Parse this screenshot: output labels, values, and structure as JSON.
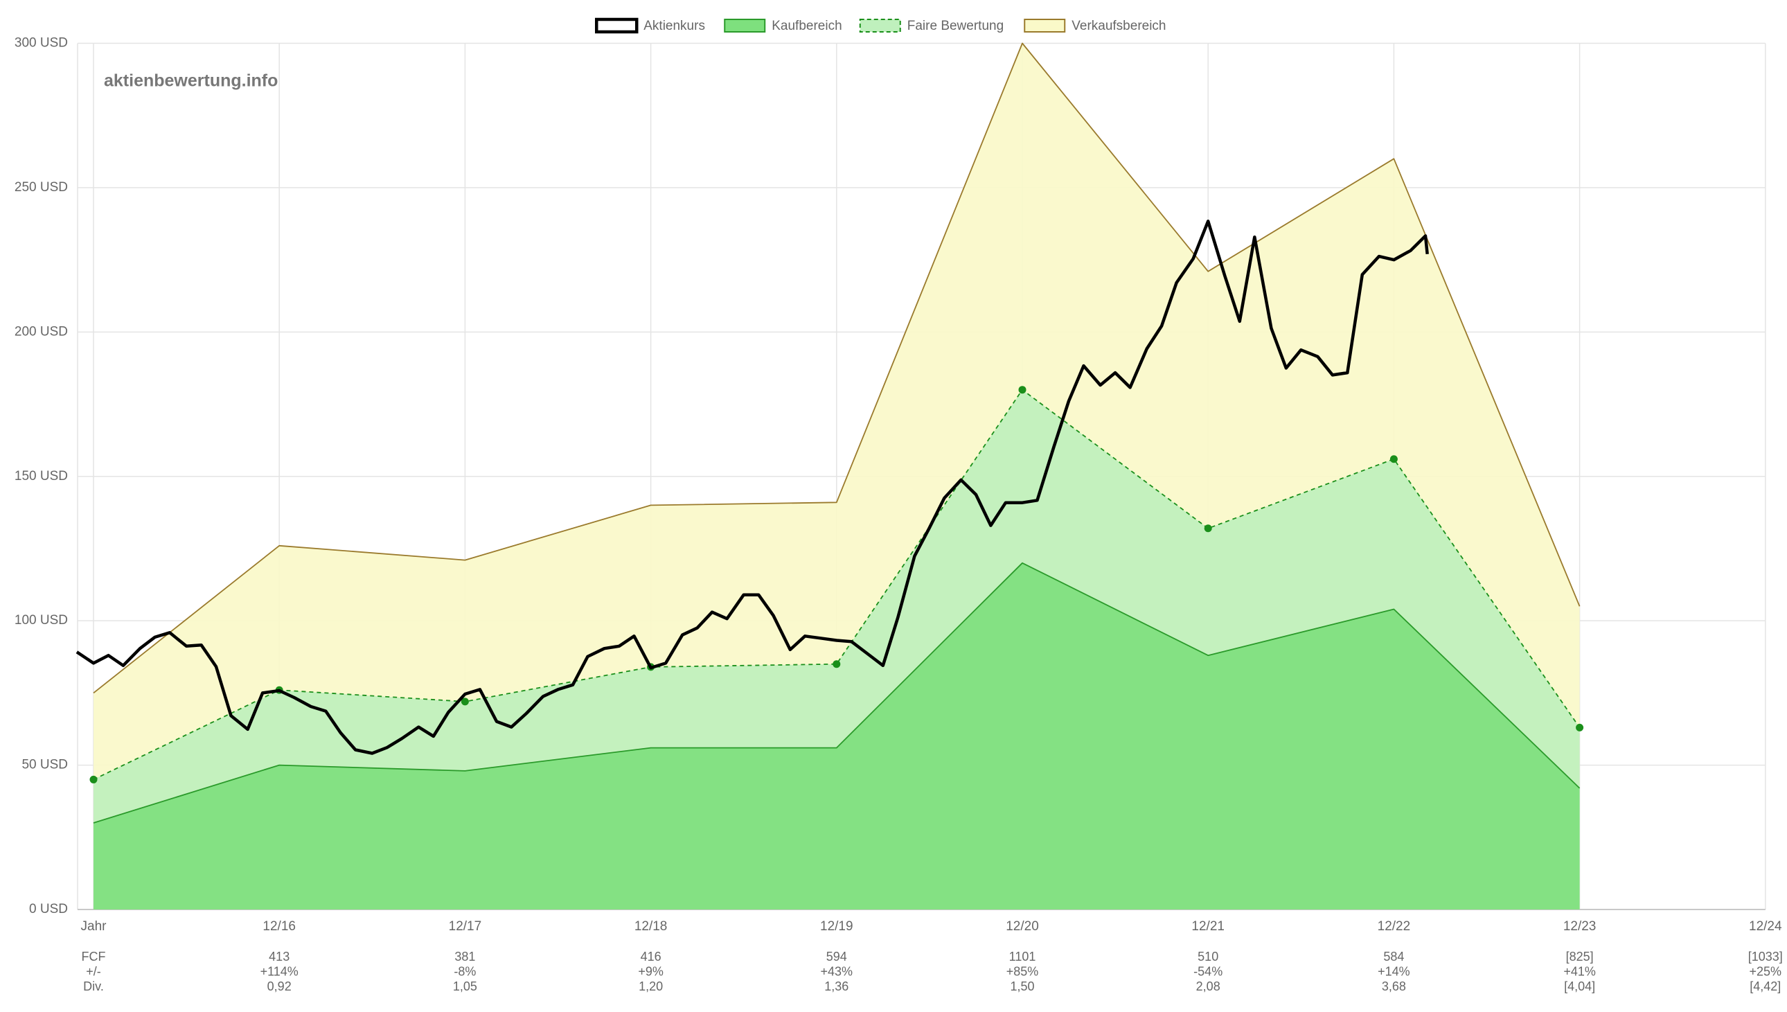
{
  "chart_data": {
    "type": "valuation",
    "watermark": "aktienbewertung.info",
    "categories": [
      "Jahr",
      "12/16",
      "12/17",
      "12/18",
      "12/19",
      "12/20",
      "12/21",
      "12/22",
      "12/23",
      "12/24"
    ],
    "ylim": [
      0,
      300
    ],
    "yticks": [
      {
        "value": 0,
        "label": "0 USD"
      },
      {
        "value": 50,
        "label": "50 USD"
      },
      {
        "value": 100,
        "label": "100 USD"
      },
      {
        "value": 150,
        "label": "150 USD"
      },
      {
        "value": 200,
        "label": "200 USD"
      },
      {
        "value": 250,
        "label": "250 USD"
      },
      {
        "value": 300,
        "label": "300 USD"
      }
    ],
    "grid": true,
    "legend": "top",
    "series": [
      {
        "name": "Verkaufsbereich",
        "color": "#9a7a2c",
        "fill": "#faf9c9",
        "values": [
          75,
          126,
          121,
          140,
          141,
          300,
          221,
          260,
          105,
          null
        ]
      },
      {
        "name": "Faire Bewertung",
        "color": "#1a8f1a",
        "fill": "#bff0bd",
        "dashed": true,
        "markers": true,
        "values": [
          45,
          76,
          72,
          84,
          85,
          180,
          132,
          156,
          63,
          null
        ]
      },
      {
        "name": "Kaufbereich",
        "color": "#2a9a2a",
        "fill": "#7ee07e",
        "values": [
          30,
          50,
          48,
          56,
          56,
          120,
          88,
          104,
          42,
          null
        ]
      },
      {
        "name": "Aktienkurs",
        "color": "#000000",
        "x": [
          -0.09,
          0,
          0.08,
          0.16,
          0.25,
          0.33,
          0.41,
          0.5,
          0.58,
          0.66,
          0.74,
          0.83,
          0.91,
          1,
          1.08,
          1.17,
          1.25,
          1.33,
          1.41,
          1.5,
          1.58,
          1.66,
          1.75,
          1.83,
          1.91,
          2,
          2.08,
          2.17,
          2.25,
          2.33,
          2.42,
          2.5,
          2.58,
          2.66,
          2.75,
          2.83,
          2.91,
          3,
          3.08,
          3.17,
          3.25,
          3.33,
          3.41,
          3.5,
          3.58,
          3.66,
          3.75,
          3.83,
          3.91,
          4,
          4.08,
          4.17,
          4.25,
          4.33,
          4.42,
          4.5,
          4.58,
          4.67,
          4.75,
          4.83,
          4.91,
          5,
          5.08,
          5.17,
          5.25,
          5.33,
          5.42,
          5.5,
          5.58,
          5.67,
          5.75,
          5.83,
          5.92,
          6,
          6.09,
          6.17,
          6.25,
          6.34,
          6.42,
          6.5,
          6.59,
          6.67,
          6.75,
          6.83,
          6.92,
          7,
          7.09,
          7.17,
          7.18
        ],
        "values": [
          89.2,
          85.3,
          88,
          84.5,
          90.4,
          94.3,
          95.9,
          91.2,
          91.6,
          84.1,
          67.1,
          62.4,
          75,
          75.8,
          73.4,
          70.3,
          68.7,
          61.2,
          55.3,
          54.1,
          56.1,
          59.2,
          63.2,
          60,
          68.3,
          74.6,
          76.2,
          65.1,
          63.2,
          67.9,
          73.8,
          76.2,
          77.8,
          87.6,
          90.4,
          91.2,
          94.7,
          83.7,
          85.3,
          95.1,
          97.5,
          103,
          100.7,
          109,
          109,
          101.8,
          90,
          94.7,
          94,
          93.2,
          92.8,
          88.4,
          84.5,
          101.1,
          122.4,
          132.2,
          142.5,
          148.8,
          143.7,
          133,
          140.9,
          140.9,
          141.7,
          160.3,
          176.1,
          188.3,
          181.6,
          185.9,
          180.8,
          194.2,
          202.1,
          217.1,
          225.4,
          238.4,
          219.5,
          203.7,
          232.9,
          201.3,
          187.5,
          193.8,
          191.5,
          185.1,
          185.9,
          219.9,
          226.2,
          225,
          228.2,
          233.3,
          227
        ]
      }
    ],
    "table": [
      [
        "FCF",
        "413",
        "381",
        "416",
        "594",
        "1101",
        "510",
        "584",
        "[825]",
        "[1033]"
      ],
      [
        "+/-",
        "+114%",
        "-8%",
        "+9%",
        "+43%",
        "+85%",
        "-54%",
        "+14%",
        "+41%",
        "+25%"
      ],
      [
        "Div.",
        "0,92",
        "1,05",
        "1,20",
        "1,36",
        "1,50",
        "2,08",
        "3,68",
        "[4,04]",
        "[4,42]"
      ]
    ]
  }
}
